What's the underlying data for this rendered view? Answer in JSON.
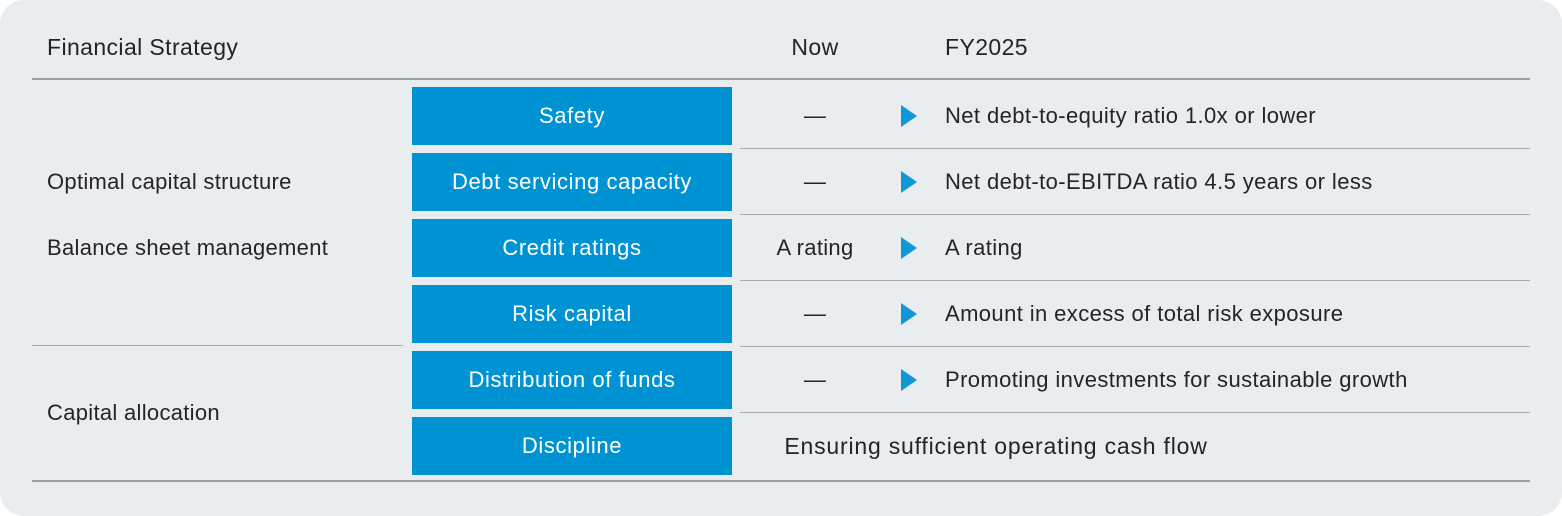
{
  "header": {
    "title": "Financial Strategy",
    "col_now": "Now",
    "col_fy2025": "FY2025"
  },
  "left_column": {
    "optimal_capital_structure": "Optimal capital structure",
    "balance_sheet_management": "Balance sheet management",
    "capital_allocation": "Capital allocation"
  },
  "rows": [
    {
      "box": "Safety",
      "now": "—",
      "fy2025": "Net debt-to-equity ratio 1.0x or lower"
    },
    {
      "box": "Debt servicing capacity",
      "now": "—",
      "fy2025": "Net debt-to-EBITDA ratio 4.5 years or less"
    },
    {
      "box": "Credit ratings",
      "now": "A rating",
      "fy2025": "A rating"
    },
    {
      "box": "Risk capital",
      "now": "—",
      "fy2025": "Amount in excess of total risk exposure"
    },
    {
      "box": "Distribution of funds",
      "now": "—",
      "fy2025": "Promoting investments for sustainable growth"
    },
    {
      "box": "Discipline",
      "spanning_note": "Ensuring sufficient operating cash flow"
    }
  ],
  "colors": {
    "accent_blue": "#0093d3",
    "card_background": "#e9edf0",
    "rule_gray": "#9ba0a3",
    "text_dark": "#262324"
  }
}
